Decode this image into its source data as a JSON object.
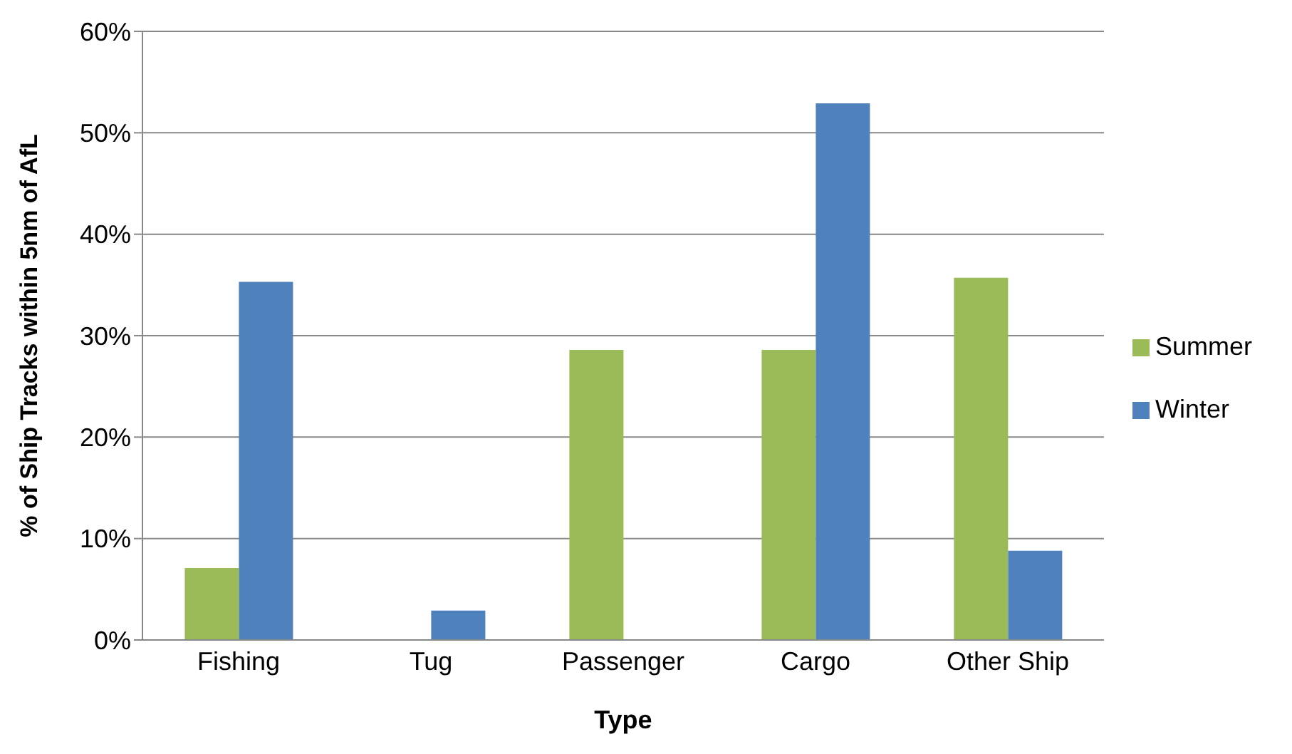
{
  "chart_data": {
    "type": "bar",
    "xlabel": "Type",
    "ylabel": "% of Ship Tracks within 5nm of AfL",
    "categories": [
      "Fishing",
      "Tug",
      "Passenger",
      "Cargo",
      "Other Ship"
    ],
    "series": [
      {
        "name": "Summer",
        "color": "#9bbb59",
        "values": [
          7.1,
          0,
          28.6,
          28.6,
          35.7
        ]
      },
      {
        "name": "Winter",
        "color": "#4f81bd",
        "values": [
          35.3,
          2.9,
          0,
          52.9,
          8.8
        ]
      }
    ],
    "ylim": [
      0,
      60
    ],
    "yticks": [
      {
        "value": 0,
        "label": "0%"
      },
      {
        "value": 10,
        "label": "10%"
      },
      {
        "value": 20,
        "label": "20%"
      },
      {
        "value": 30,
        "label": "30%"
      },
      {
        "value": 40,
        "label": "40%"
      },
      {
        "value": 50,
        "label": "50%"
      },
      {
        "value": 60,
        "label": "60%"
      }
    ],
    "grid": "y",
    "legend": "right"
  }
}
